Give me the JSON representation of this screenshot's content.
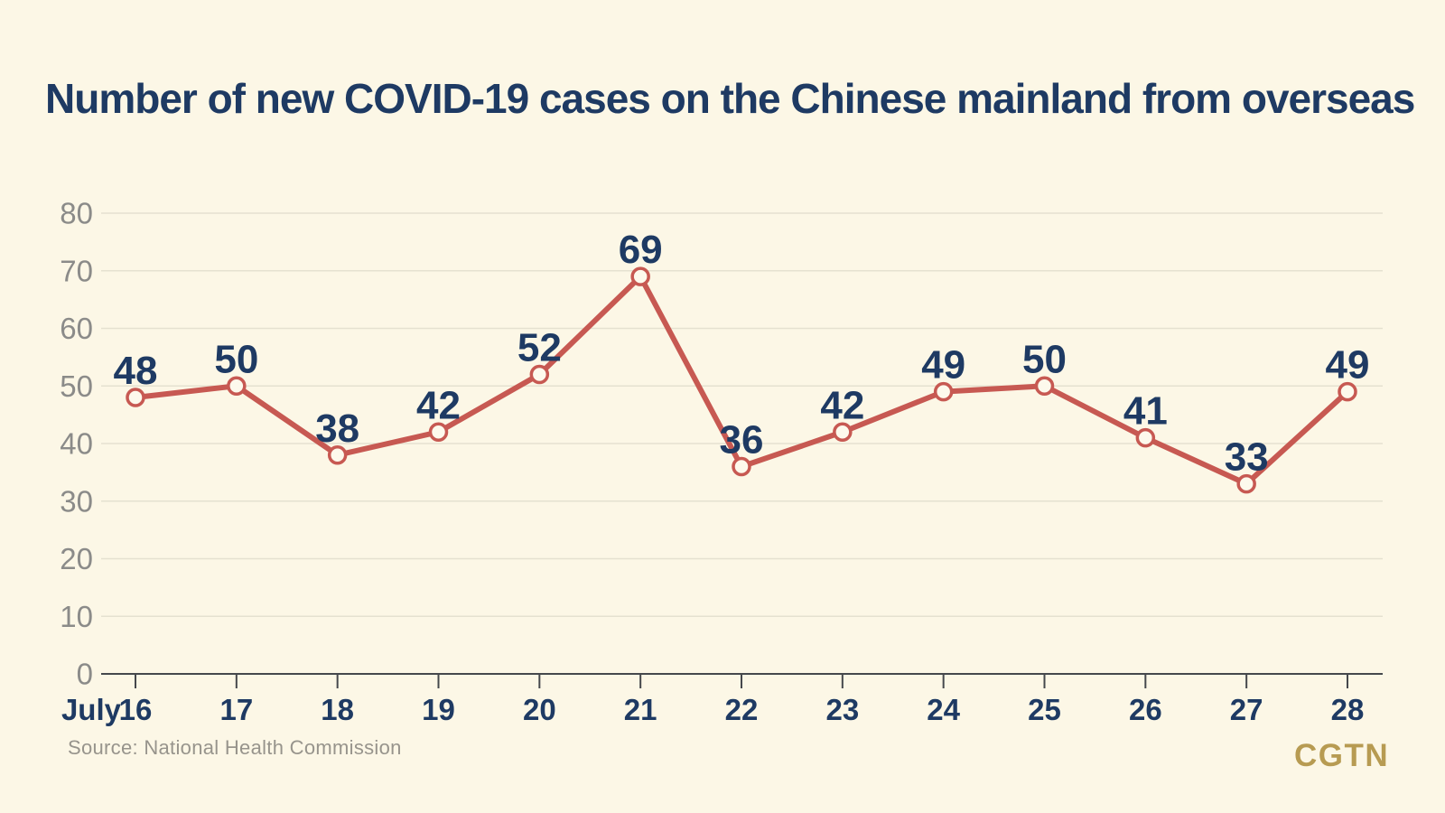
{
  "chart_data": {
    "type": "line",
    "title": "Number of new COVID-19 cases on the Chinese mainland from overseas",
    "x_prefix_label": "July",
    "categories": [
      "16",
      "17",
      "18",
      "19",
      "20",
      "21",
      "22",
      "23",
      "24",
      "25",
      "26",
      "27",
      "28"
    ],
    "values": [
      48,
      50,
      38,
      42,
      52,
      69,
      36,
      42,
      49,
      50,
      41,
      33,
      49
    ],
    "ylim": [
      0,
      80
    ],
    "y_ticks": [
      0,
      10,
      20,
      30,
      40,
      50,
      60,
      70,
      80
    ],
    "grid": true,
    "legend": "none",
    "source": "Source: National Health Commission",
    "brand": "CGTN",
    "colors": {
      "background": "#FCF7E6",
      "title": "#1E3A63",
      "line": "#C75952",
      "marker_fill": "#FDF9EC",
      "value_label": "#1E3A63",
      "x_label": "#1E3A63",
      "y_label": "#8B8B89",
      "grid": "#E5E1D0",
      "axis_line": "#45484C",
      "source_text": "#97948C",
      "brand": "#B79B52"
    }
  }
}
